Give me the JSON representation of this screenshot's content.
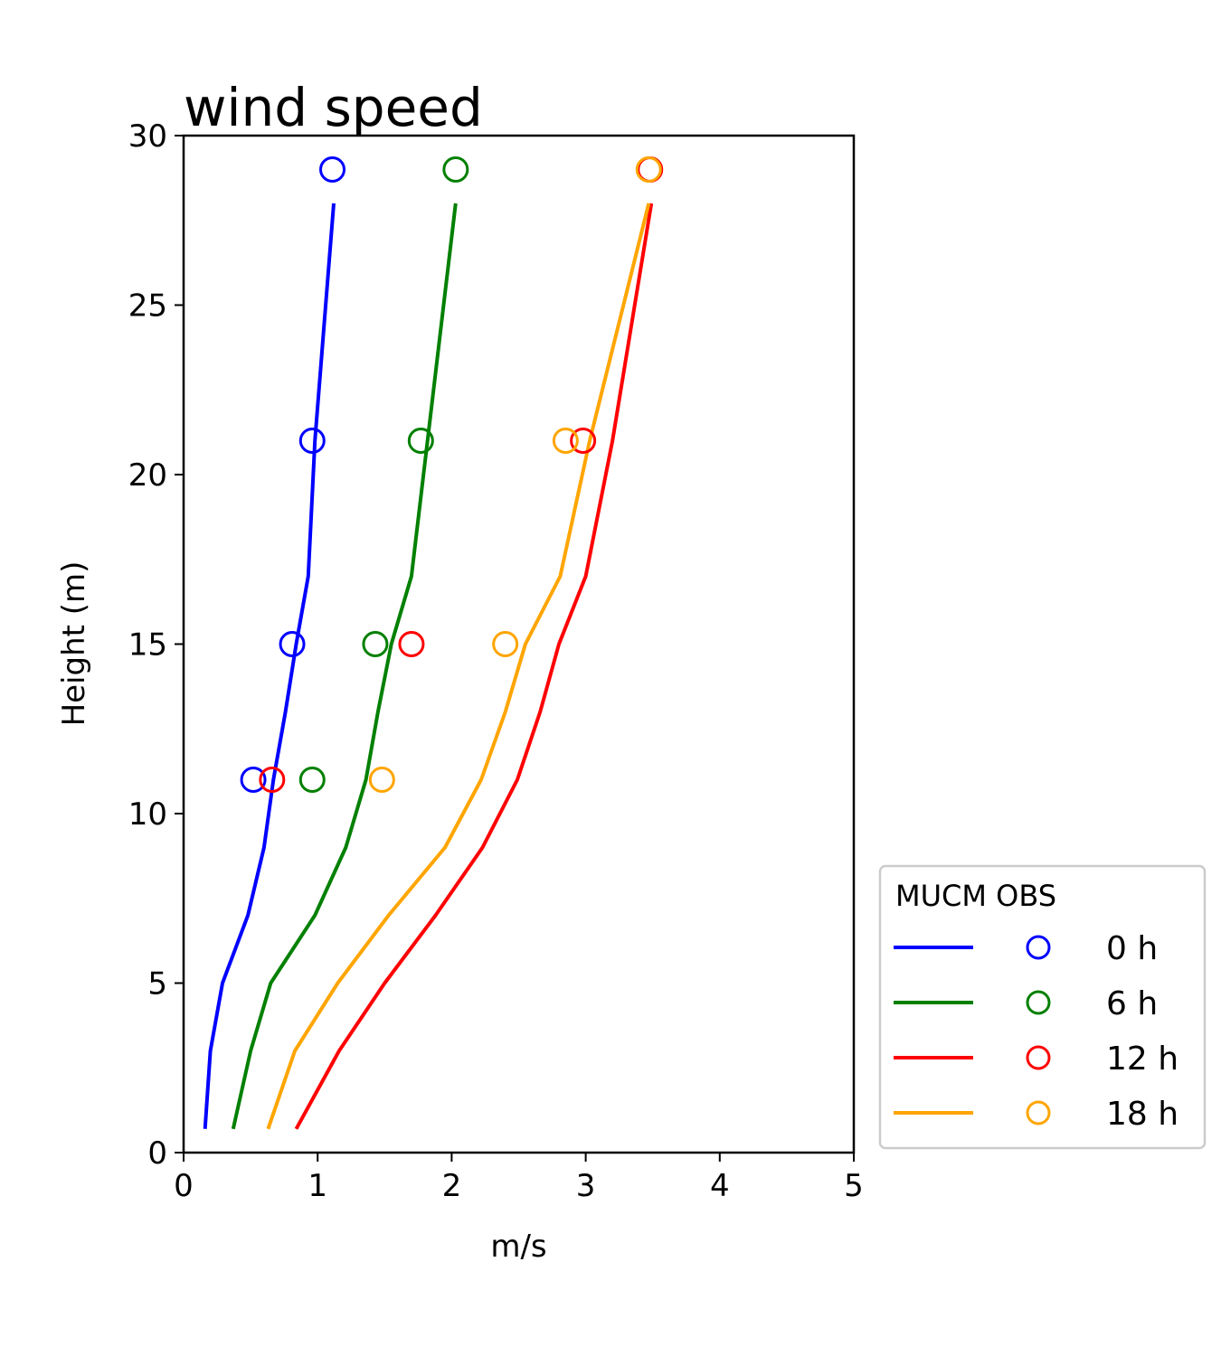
{
  "chart_data": {
    "type": "line",
    "title": "wind speed",
    "xlabel": "m/s",
    "ylabel": "Height (m)",
    "xlim": [
      0,
      5
    ],
    "ylim": [
      0,
      30
    ],
    "xticks": [
      "0",
      "1",
      "2",
      "3",
      "4",
      "5"
    ],
    "yticks": [
      "0",
      "5",
      "10",
      "15",
      "20",
      "25",
      "30"
    ],
    "grid": false,
    "legend": {
      "placement": "lower-right-outside",
      "header": "MUCM OBS",
      "entries": [
        "0 h",
        "6 h",
        "12 h",
        "18 h"
      ]
    },
    "series": [
      {
        "name": "0 h",
        "color": "#0000ff",
        "model": [
          [
            0.16,
            0.7
          ],
          [
            0.2,
            3
          ],
          [
            0.29,
            5
          ],
          [
            0.48,
            7
          ],
          [
            0.6,
            9
          ],
          [
            0.67,
            11
          ],
          [
            0.76,
            13
          ],
          [
            0.84,
            15
          ],
          [
            0.93,
            17
          ],
          [
            0.98,
            21
          ],
          [
            1.12,
            28
          ]
        ],
        "obs": [
          [
            0.52,
            11
          ],
          [
            0.81,
            15
          ],
          [
            0.96,
            21
          ],
          [
            1.11,
            29
          ]
        ]
      },
      {
        "name": "6 h",
        "color": "#008000",
        "model": [
          [
            0.37,
            0.7
          ],
          [
            0.5,
            3
          ],
          [
            0.65,
            5
          ],
          [
            0.98,
            7
          ],
          [
            1.21,
            9
          ],
          [
            1.36,
            11
          ],
          [
            1.45,
            13
          ],
          [
            1.55,
            15
          ],
          [
            1.7,
            17
          ],
          [
            1.82,
            21
          ],
          [
            2.03,
            28
          ]
        ],
        "obs": [
          [
            0.96,
            11
          ],
          [
            1.43,
            15
          ],
          [
            1.77,
            21
          ],
          [
            2.03,
            29
          ]
        ]
      },
      {
        "name": "12 h",
        "color": "#ff0000",
        "model": [
          [
            0.84,
            0.7
          ],
          [
            1.16,
            3
          ],
          [
            1.5,
            5
          ],
          [
            1.88,
            7
          ],
          [
            2.23,
            9
          ],
          [
            2.49,
            11
          ],
          [
            2.66,
            13
          ],
          [
            2.8,
            15
          ],
          [
            3.0,
            17
          ],
          [
            3.2,
            21
          ],
          [
            3.49,
            28
          ]
        ],
        "obs": [
          [
            0.66,
            11
          ],
          [
            1.7,
            15
          ],
          [
            2.98,
            21
          ],
          [
            3.48,
            29
          ]
        ]
      },
      {
        "name": "18 h",
        "color": "#ffa500",
        "model": [
          [
            0.63,
            0.7
          ],
          [
            0.83,
            3
          ],
          [
            1.15,
            5
          ],
          [
            1.53,
            7
          ],
          [
            1.95,
            9
          ],
          [
            2.22,
            11
          ],
          [
            2.4,
            13
          ],
          [
            2.55,
            15
          ],
          [
            2.81,
            17
          ],
          [
            3.03,
            21
          ],
          [
            3.47,
            28
          ]
        ],
        "obs": [
          [
            1.48,
            11
          ],
          [
            2.4,
            15
          ],
          [
            2.85,
            21
          ],
          [
            3.47,
            29
          ]
        ]
      }
    ]
  }
}
